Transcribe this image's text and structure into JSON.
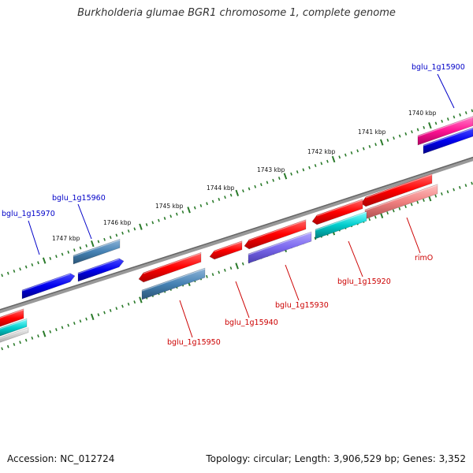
{
  "title": "Burkholderia glumae BGR1 chromosome 1, complete genome",
  "footer": {
    "accession": "Accession: NC_012724",
    "summary": "Topology: circular; Length: 3,906,529 bp; Genes: 3,352"
  },
  "scale_labels": [
    "1740 kbp",
    "1741 kbp",
    "1742 kbp",
    "1743 kbp",
    "1744 kbp",
    "1745 kbp",
    "1746 kbp",
    "1747 kbp"
  ],
  "genes": [
    {
      "label": "bglu_1g15900",
      "color": "#0000c8",
      "strand": "forward"
    },
    {
      "label": "bglu_1g15960",
      "color": "#0000c8",
      "strand": "forward"
    },
    {
      "label": "bglu_1g15970",
      "color": "#0000c8",
      "strand": "forward"
    },
    {
      "label": "bglu_1g15920",
      "color": "#cc0000",
      "strand": "reverse"
    },
    {
      "label": "rimO",
      "color": "#cc0000",
      "strand": "reverse"
    },
    {
      "label": "bglu_1g15930",
      "color": "#cc0000",
      "strand": "reverse"
    },
    {
      "label": "bglu_1g15940",
      "color": "#cc0000",
      "strand": "reverse"
    },
    {
      "label": "bglu_1g15950",
      "color": "#cc0000",
      "strand": "reverse"
    }
  ],
  "colors": {
    "backbone": "#808080",
    "ticks": "#2a7a2a",
    "forward_label": "#0000c8",
    "reverse_label": "#cc0000",
    "red_feature": "#ff0000",
    "blue_feature": "#0000ee",
    "steelblue_feature": "#4682b4",
    "cyan_feature": "#00cccc",
    "slateblue_feature": "#7b68ee",
    "pink_feature": "#ff1493",
    "salmon_feature": "#f08080"
  }
}
